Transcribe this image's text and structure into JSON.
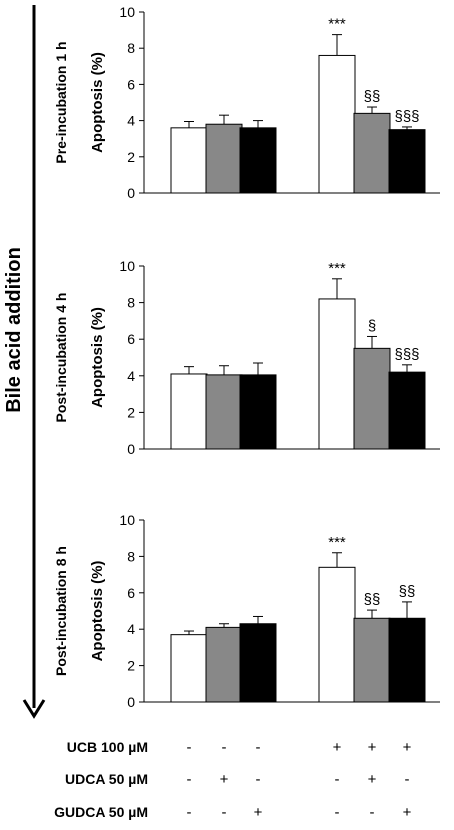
{
  "side_label": "Bile acid addition",
  "colors": {
    "white_bar": "#ffffff",
    "gray_bar": "#888888",
    "black_bar": "#000000",
    "outline": "#000000"
  },
  "chart_data": [
    {
      "type": "bar",
      "title": "Pre-incubation  1 h",
      "ylabel": "Apoptosis (%)",
      "ylim": [
        0,
        10
      ],
      "yticks": [
        0,
        2,
        4,
        6,
        8,
        10
      ],
      "categories": [
        "-UCB control",
        "-UCB UDCA",
        "-UCB GUDCA",
        "UCB control",
        "UCB UDCA",
        "UCB GUDCA"
      ],
      "values": [
        3.6,
        3.8,
        3.6,
        7.6,
        4.4,
        3.5
      ],
      "errors": [
        0.35,
        0.5,
        0.4,
        1.15,
        0.35,
        0.15
      ],
      "significance": [
        "",
        "",
        "",
        "***",
        "§§",
        "§§§"
      ]
    },
    {
      "type": "bar",
      "title": "Post-incubation  4 h",
      "ylabel": "Apoptosis (%)",
      "ylim": [
        0,
        10
      ],
      "yticks": [
        0,
        2,
        4,
        6,
        8,
        10
      ],
      "categories": [
        "-UCB control",
        "-UCB UDCA",
        "-UCB GUDCA",
        "UCB control",
        "UCB UDCA",
        "UCB GUDCA"
      ],
      "values": [
        4.1,
        4.05,
        4.05,
        8.2,
        5.5,
        4.2
      ],
      "errors": [
        0.4,
        0.5,
        0.65,
        1.1,
        0.65,
        0.4
      ],
      "significance": [
        "",
        "",
        "",
        "***",
        "§",
        "§§§"
      ]
    },
    {
      "type": "bar",
      "title": "Post-incubation 8 h",
      "ylabel": "Apoptosis (%)",
      "ylim": [
        0,
        10
      ],
      "yticks": [
        0,
        2,
        4,
        6,
        8,
        10
      ],
      "categories": [
        "-UCB control",
        "-UCB UDCA",
        "-UCB GUDCA",
        "UCB control",
        "UCB UDCA",
        "UCB GUDCA"
      ],
      "values": [
        3.7,
        4.1,
        4.3,
        7.4,
        4.6,
        4.6
      ],
      "errors": [
        0.2,
        0.2,
        0.4,
        0.8,
        0.45,
        0.9
      ],
      "significance": [
        "",
        "",
        "",
        "***",
        "§§",
        "§§"
      ]
    }
  ],
  "conditions": [
    {
      "label": "UCB 100 µM",
      "signs": [
        "-",
        "-",
        "-",
        "+",
        "+",
        "+"
      ]
    },
    {
      "label": "UDCA 50 µM",
      "signs": [
        "-",
        "+",
        "-",
        "-",
        "+",
        "-"
      ]
    },
    {
      "label": "GUDCA 50 µM",
      "signs": [
        "-",
        "-",
        "+",
        "-",
        "-",
        "+"
      ]
    }
  ]
}
